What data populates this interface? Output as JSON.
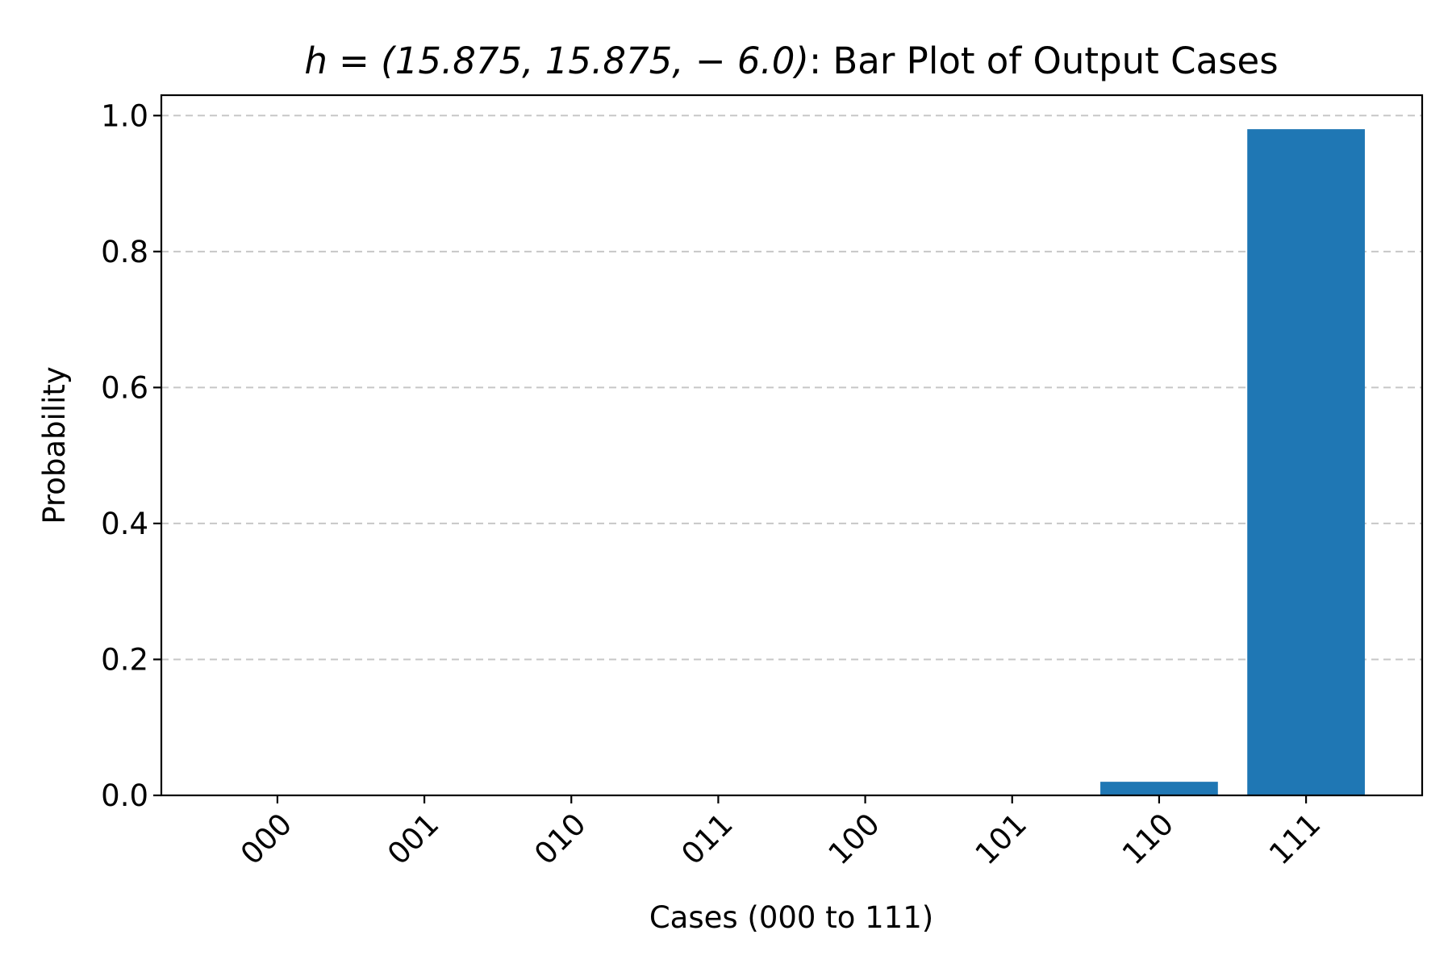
{
  "chart_data": {
    "type": "bar",
    "title_math": "h = (15.875, 15.875, − 6.0)",
    "title_suffix": ": Bar Plot of Output Cases",
    "xlabel": "Cases (000 to 111)",
    "ylabel": "Probability",
    "categories": [
      "000",
      "001",
      "010",
      "011",
      "100",
      "101",
      "110",
      "111"
    ],
    "values": [
      0.0,
      0.0,
      0.0,
      0.0,
      0.0,
      0.0,
      0.02,
      0.98
    ],
    "ylim": [
      0,
      1.03
    ],
    "yticks": [
      0.0,
      0.2,
      0.4,
      0.6,
      0.8,
      1.0
    ],
    "ytick_labels": [
      "0.0",
      "0.2",
      "0.4",
      "0.6",
      "0.8",
      "1.0"
    ],
    "grid": "y-dashed",
    "bar_color": "#1f77b4"
  }
}
